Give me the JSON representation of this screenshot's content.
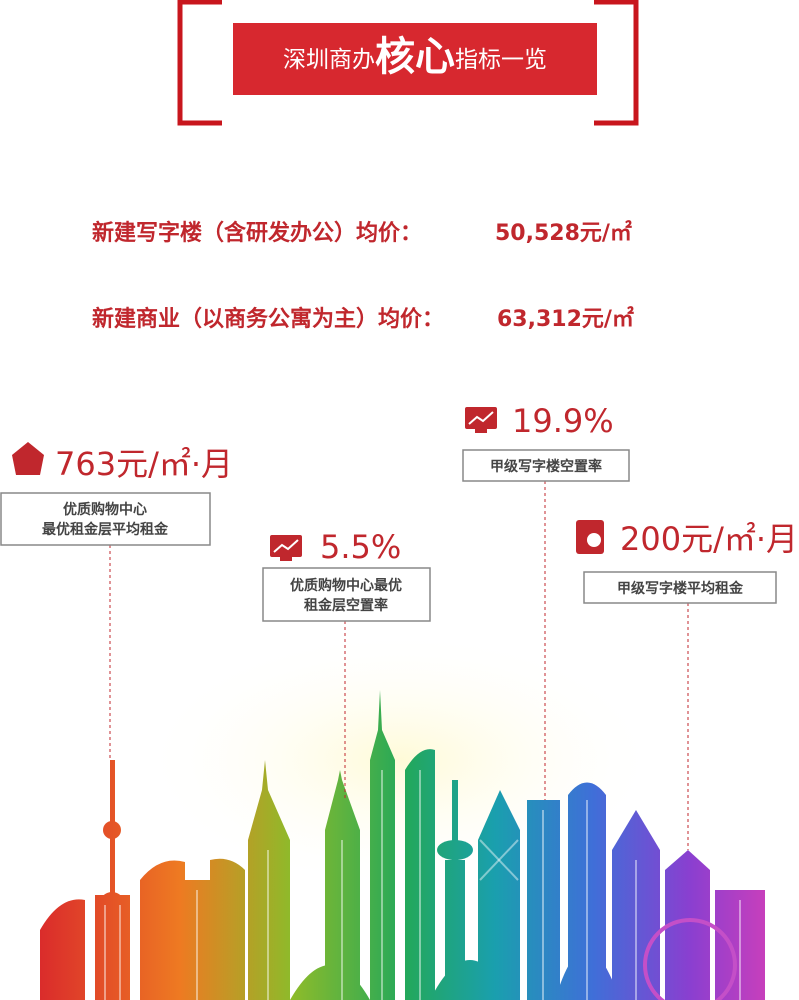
{
  "header": {
    "title_part1": "深圳商办",
    "title_highlight": "核心",
    "title_part2": "指标一览"
  },
  "prices": [
    {
      "label": "新建写字楼（含研发办公）均价：",
      "value": "50,528元/㎡"
    },
    {
      "label": "新建商业（以商务公寓为主）均价：",
      "value": "63,312元/㎡"
    }
  ],
  "stats": [
    {
      "value": "763元/㎡·月",
      "lines": [
        "优质购物中心",
        "最优租金层平均租金"
      ]
    },
    {
      "value": "5.5%",
      "lines": [
        "优质购物中心最优",
        "租金层空置率"
      ]
    },
    {
      "value": "19.9%",
      "lines": [
        "甲级写字楼空置率"
      ]
    },
    {
      "value": "200元/㎡·月",
      "lines": [
        "甲级写字楼平均租金"
      ]
    }
  ]
}
